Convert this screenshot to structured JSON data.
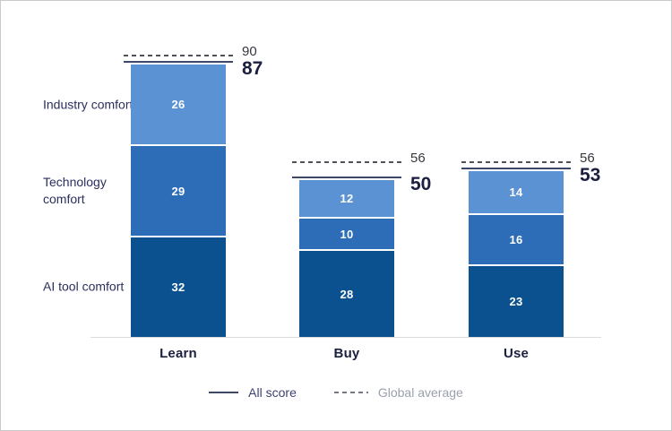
{
  "chart_data": {
    "type": "bar",
    "stacked": true,
    "orientation": "vertical",
    "categories": [
      "Learn",
      "Buy",
      "Use"
    ],
    "series": [
      {
        "name": "AI tool comfort",
        "color": "#0b518f",
        "values": [
          32,
          28,
          23
        ]
      },
      {
        "name": "Technology comfort",
        "color": "#2d6db8",
        "values": [
          29,
          10,
          16
        ]
      },
      {
        "name": "Industry comfort",
        "color": "#5b92d4",
        "values": [
          26,
          12,
          14
        ]
      }
    ],
    "totals": {
      "label": "All score",
      "values": [
        87,
        50,
        53
      ]
    },
    "reference": {
      "label": "Global average",
      "values": [
        90,
        56,
        56
      ]
    },
    "grid": false,
    "y_axis_visible": false,
    "legend_position": "bottom"
  },
  "legend": {
    "all_score": "All score",
    "global_average": "Global average"
  },
  "colors": {
    "background": "#ffffff",
    "border": "#c9c9c9",
    "axis_line": "#dcdcdc",
    "segment_dark": "#0b518f",
    "segment_medium": "#2d6db8",
    "segment_light": "#5b92d4",
    "all_score_line": "#3d4768",
    "global_average_line": "#4f5058",
    "legend_dash": "#737987",
    "total_text": "#1b1f40",
    "reference_text": "#36373f",
    "row_label_text": "#2b2f5e",
    "legend_navy_text": "#3d4270",
    "legend_muted_text": "#9ba1ac",
    "segment_value_text": "#ffffff"
  }
}
